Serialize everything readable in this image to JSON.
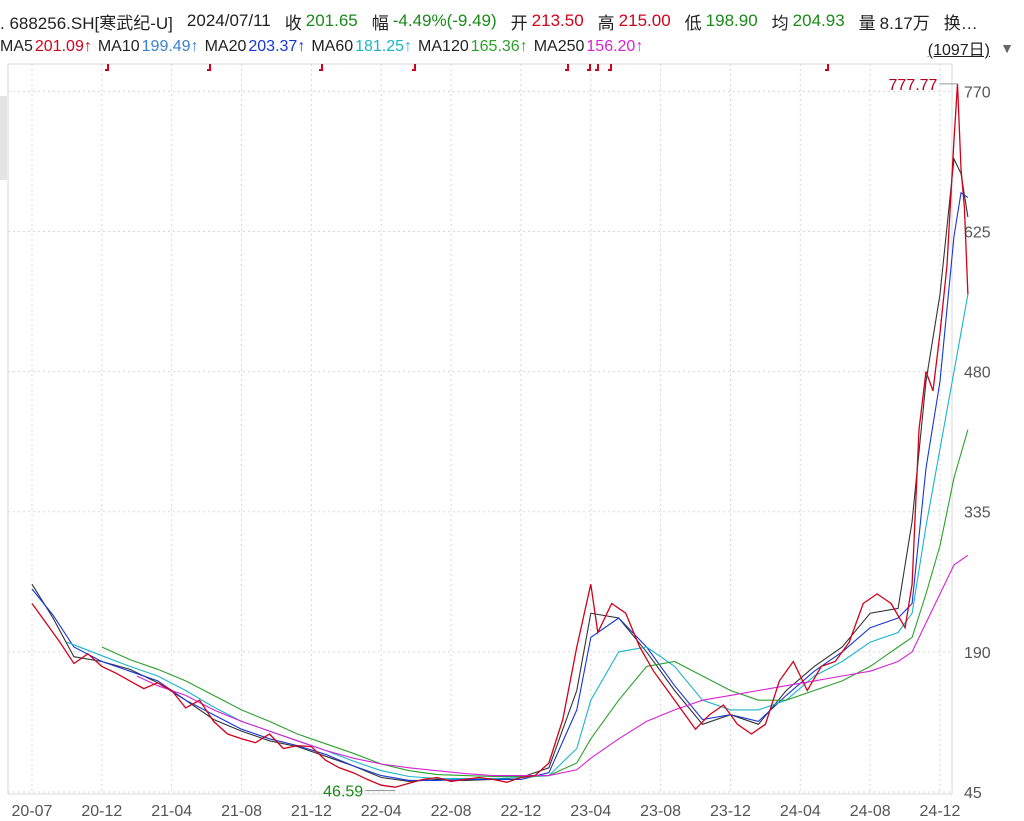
{
  "header": {
    "code": ". 688256.SH[寒武纪-U]",
    "date": "2024/07/11",
    "close_label": "收",
    "close": "201.65",
    "change_label": "幅",
    "change": "-4.49%(-9.49)",
    "open_label": "开",
    "open": "213.50",
    "high_label": "高",
    "high": "215.00",
    "low_label": "低",
    "low": "198.90",
    "avg_label": "均",
    "avg": "204.93",
    "vol_label": "量",
    "vol": "8.17万",
    "more": "换…"
  },
  "ma_legend": [
    {
      "name": "MA5",
      "value": "201.09↑",
      "color": "#333333"
    },
    {
      "name": "MA10",
      "value": "199.49↑",
      "color": "#3a7fd0"
    },
    {
      "name": "MA20",
      "value": "203.37↑",
      "color": "#1537d6"
    },
    {
      "name": "MA60",
      "value": "181.25↑",
      "color": "#19b5c8"
    },
    {
      "name": "MA120",
      "value": "165.36↑",
      "color": "#2ca02c"
    },
    {
      "name": "MA250",
      "value": "156.20↑",
      "color": "#d623d6"
    }
  ],
  "days_label": "(1097日)",
  "colors": {
    "up": "#d0021b",
    "down": "#1a8a1a",
    "grid": "#d8d8d8"
  },
  "chart_data": {
    "type": "line",
    "title": "",
    "xlabel": "",
    "ylabel": "",
    "ylim": [
      45,
      790
    ],
    "y_ticks": [
      45,
      190,
      335,
      480,
      625,
      770
    ],
    "x_ticks": [
      "20-07",
      "20-12",
      "21-04",
      "21-08",
      "21-12",
      "22-04",
      "22-08",
      "22-12",
      "23-04",
      "23-08",
      "23-12",
      "24-04",
      "24-08",
      "24-12"
    ],
    "max_annotation": {
      "label": "777.77",
      "date": "24-12",
      "value": 777.77
    },
    "min_annotation": {
      "label": "46.59",
      "date": "22-04",
      "value": 46.59
    },
    "legend": "top-left",
    "grid": true,
    "series": [
      {
        "name": "MA5",
        "color": "#333333",
        "values": [
          [
            0,
            260
          ],
          [
            0.3,
            225
          ],
          [
            0.6,
            185
          ],
          [
            1,
            180
          ],
          [
            1.4,
            172
          ],
          [
            1.8,
            158
          ],
          [
            2.2,
            140
          ],
          [
            2.6,
            120
          ],
          [
            3,
            108
          ],
          [
            3.4,
            98
          ],
          [
            3.8,
            92
          ],
          [
            4.2,
            82
          ],
          [
            4.6,
            72
          ],
          [
            5,
            60
          ],
          [
            5.4,
            56
          ],
          [
            5.8,
            58
          ],
          [
            6.2,
            57
          ],
          [
            6.6,
            58
          ],
          [
            7,
            60
          ],
          [
            7.4,
            70
          ],
          [
            7.8,
            150
          ],
          [
            8,
            230
          ],
          [
            8.4,
            225
          ],
          [
            8.8,
            190
          ],
          [
            9.2,
            150
          ],
          [
            9.6,
            115
          ],
          [
            10,
            125
          ],
          [
            10.4,
            115
          ],
          [
            10.8,
            150
          ],
          [
            11.2,
            175
          ],
          [
            11.6,
            195
          ],
          [
            12,
            230
          ],
          [
            12.4,
            235
          ],
          [
            12.6,
            325
          ],
          [
            12.8,
            470
          ],
          [
            13,
            560
          ],
          [
            13.2,
            700
          ],
          [
            13.3,
            685
          ],
          [
            13.4,
            640
          ]
        ]
      },
      {
        "name": "MA20",
        "color": "#1537d6",
        "values": [
          [
            0,
            255
          ],
          [
            0.3,
            228
          ],
          [
            0.6,
            195
          ],
          [
            1,
            180
          ],
          [
            1.4,
            170
          ],
          [
            1.8,
            160
          ],
          [
            2.2,
            140
          ],
          [
            2.6,
            125
          ],
          [
            3,
            110
          ],
          [
            3.4,
            100
          ],
          [
            3.8,
            93
          ],
          [
            4.2,
            84
          ],
          [
            4.6,
            72
          ],
          [
            5,
            62
          ],
          [
            5.4,
            57
          ],
          [
            5.8,
            57
          ],
          [
            6.2,
            58
          ],
          [
            6.6,
            58
          ],
          [
            7,
            58
          ],
          [
            7.4,
            65
          ],
          [
            7.8,
            130
          ],
          [
            8,
            205
          ],
          [
            8.4,
            225
          ],
          [
            8.8,
            195
          ],
          [
            9.2,
            155
          ],
          [
            9.6,
            120
          ],
          [
            10,
            125
          ],
          [
            10.4,
            118
          ],
          [
            10.8,
            145
          ],
          [
            11.2,
            170
          ],
          [
            11.6,
            190
          ],
          [
            12,
            215
          ],
          [
            12.4,
            225
          ],
          [
            12.6,
            240
          ],
          [
            12.8,
            380
          ],
          [
            13,
            470
          ],
          [
            13.2,
            620
          ],
          [
            13.3,
            665
          ],
          [
            13.4,
            660
          ]
        ]
      },
      {
        "name": "MA60",
        "color": "#19b5c8",
        "values": [
          [
            0.5,
            200
          ],
          [
            1,
            186
          ],
          [
            1.4,
            175
          ],
          [
            1.8,
            165
          ],
          [
            2.2,
            150
          ],
          [
            2.6,
            133
          ],
          [
            3,
            118
          ],
          [
            3.4,
            108
          ],
          [
            3.8,
            98
          ],
          [
            4.2,
            88
          ],
          [
            4.6,
            77
          ],
          [
            5,
            67
          ],
          [
            5.4,
            61
          ],
          [
            5.8,
            59
          ],
          [
            6.2,
            59
          ],
          [
            6.6,
            59
          ],
          [
            7,
            60
          ],
          [
            7.4,
            62
          ],
          [
            7.8,
            90
          ],
          [
            8,
            140
          ],
          [
            8.4,
            190
          ],
          [
            8.8,
            195
          ],
          [
            9.2,
            175
          ],
          [
            9.6,
            140
          ],
          [
            10,
            130
          ],
          [
            10.4,
            130
          ],
          [
            10.8,
            140
          ],
          [
            11.2,
            165
          ],
          [
            11.6,
            180
          ],
          [
            12,
            200
          ],
          [
            12.4,
            210
          ],
          [
            12.6,
            230
          ],
          [
            12.8,
            320
          ],
          [
            13,
            400
          ],
          [
            13.2,
            480
          ],
          [
            13.4,
            560
          ]
        ]
      },
      {
        "name": "MA120",
        "color": "#2ca02c",
        "values": [
          [
            1,
            195
          ],
          [
            1.4,
            182
          ],
          [
            1.8,
            172
          ],
          [
            2.2,
            160
          ],
          [
            2.6,
            145
          ],
          [
            3,
            130
          ],
          [
            3.4,
            118
          ],
          [
            3.8,
            105
          ],
          [
            4.2,
            95
          ],
          [
            4.6,
            85
          ],
          [
            5,
            74
          ],
          [
            5.4,
            67
          ],
          [
            5.8,
            63
          ],
          [
            6.2,
            62
          ],
          [
            6.6,
            61
          ],
          [
            7,
            61
          ],
          [
            7.4,
            62
          ],
          [
            7.8,
            75
          ],
          [
            8,
            100
          ],
          [
            8.4,
            140
          ],
          [
            8.8,
            175
          ],
          [
            9.2,
            180
          ],
          [
            9.6,
            165
          ],
          [
            10,
            150
          ],
          [
            10.4,
            140
          ],
          [
            10.8,
            140
          ],
          [
            11.2,
            150
          ],
          [
            11.6,
            160
          ],
          [
            12,
            175
          ],
          [
            12.4,
            195
          ],
          [
            12.6,
            205
          ],
          [
            12.8,
            250
          ],
          [
            13,
            300
          ],
          [
            13.2,
            370
          ],
          [
            13.4,
            420
          ]
        ]
      },
      {
        "name": "MA250",
        "color": "#d623d6",
        "values": [
          [
            1.5,
            165
          ],
          [
            1.8,
            155
          ],
          [
            2.2,
            145
          ],
          [
            2.6,
            130
          ],
          [
            3,
            118
          ],
          [
            3.4,
            108
          ],
          [
            3.8,
            98
          ],
          [
            4.2,
            88
          ],
          [
            4.6,
            80
          ],
          [
            5,
            74
          ],
          [
            5.4,
            70
          ],
          [
            5.8,
            67
          ],
          [
            6.2,
            64
          ],
          [
            6.6,
            62
          ],
          [
            7,
            62
          ],
          [
            7.4,
            62
          ],
          [
            7.8,
            68
          ],
          [
            8,
            80
          ],
          [
            8.4,
            100
          ],
          [
            8.8,
            118
          ],
          [
            9.2,
            130
          ],
          [
            9.6,
            140
          ],
          [
            10,
            145
          ],
          [
            10.4,
            150
          ],
          [
            10.8,
            155
          ],
          [
            11.2,
            160
          ],
          [
            11.6,
            165
          ],
          [
            12,
            170
          ],
          [
            12.4,
            180
          ],
          [
            12.6,
            190
          ],
          [
            12.8,
            220
          ],
          [
            13,
            250
          ],
          [
            13.2,
            280
          ],
          [
            13.4,
            290
          ]
        ]
      },
      {
        "name": "Price",
        "color": "#d0021b",
        "values": [
          [
            0,
            240
          ],
          [
            0.2,
            220
          ],
          [
            0.4,
            200
          ],
          [
            0.6,
            178
          ],
          [
            0.8,
            188
          ],
          [
            1,
            175
          ],
          [
            1.2,
            168
          ],
          [
            1.4,
            160
          ],
          [
            1.6,
            152
          ],
          [
            1.8,
            158
          ],
          [
            2,
            150
          ],
          [
            2.2,
            132
          ],
          [
            2.4,
            140
          ],
          [
            2.6,
            118
          ],
          [
            2.8,
            105
          ],
          [
            3,
            100
          ],
          [
            3.2,
            96
          ],
          [
            3.4,
            105
          ],
          [
            3.6,
            90
          ],
          [
            3.8,
            93
          ],
          [
            4,
            92
          ],
          [
            4.2,
            78
          ],
          [
            4.4,
            70
          ],
          [
            4.6,
            65
          ],
          [
            4.8,
            58
          ],
          [
            5,
            52
          ],
          [
            5.2,
            50
          ],
          [
            5.4,
            54
          ],
          [
            5.6,
            58
          ],
          [
            5.8,
            60
          ],
          [
            6,
            56
          ],
          [
            6.2,
            58
          ],
          [
            6.4,
            60
          ],
          [
            6.6,
            58
          ],
          [
            6.8,
            55
          ],
          [
            7,
            60
          ],
          [
            7.2,
            62
          ],
          [
            7.4,
            75
          ],
          [
            7.6,
            120
          ],
          [
            7.8,
            195
          ],
          [
            8,
            260
          ],
          [
            8.1,
            210
          ],
          [
            8.3,
            240
          ],
          [
            8.5,
            230
          ],
          [
            8.7,
            195
          ],
          [
            8.9,
            170
          ],
          [
            9.1,
            150
          ],
          [
            9.3,
            130
          ],
          [
            9.5,
            110
          ],
          [
            9.7,
            125
          ],
          [
            9.9,
            135
          ],
          [
            10.1,
            115
          ],
          [
            10.3,
            105
          ],
          [
            10.5,
            115
          ],
          [
            10.7,
            160
          ],
          [
            10.9,
            180
          ],
          [
            11.1,
            150
          ],
          [
            11.3,
            175
          ],
          [
            11.5,
            180
          ],
          [
            11.7,
            200
          ],
          [
            11.9,
            240
          ],
          [
            12.1,
            250
          ],
          [
            12.3,
            240
          ],
          [
            12.5,
            215
          ],
          [
            12.6,
            260
          ],
          [
            12.7,
            420
          ],
          [
            12.8,
            480
          ],
          [
            12.9,
            460
          ],
          [
            13,
            520
          ],
          [
            13.1,
            590
          ],
          [
            13.2,
            720
          ],
          [
            13.25,
            777.77
          ],
          [
            13.3,
            690
          ],
          [
            13.35,
            650
          ],
          [
            13.4,
            560
          ]
        ]
      }
    ]
  }
}
